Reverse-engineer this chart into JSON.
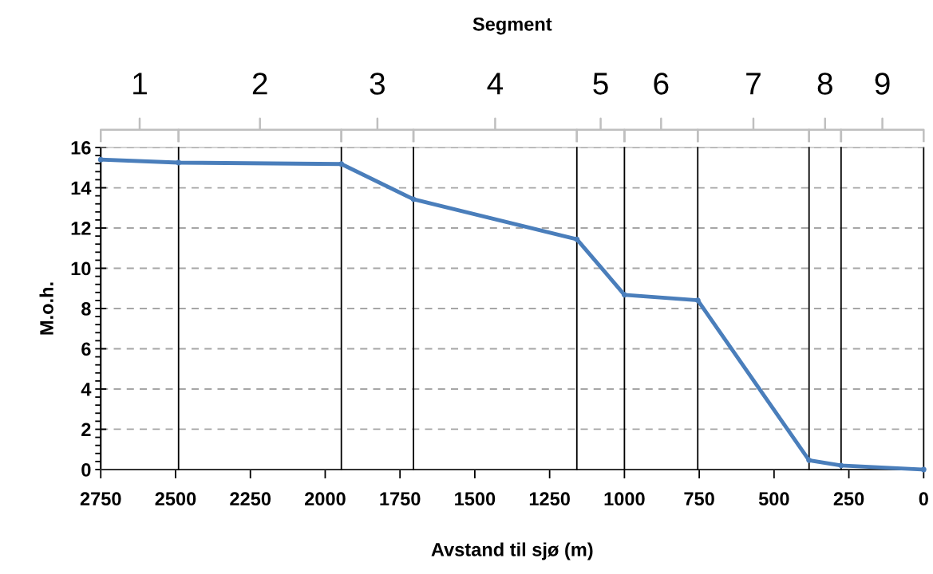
{
  "chart_data": {
    "type": "line",
    "title": "Segment",
    "xlabel": "Avstand til sjø (m)",
    "ylabel": "M.o.h.",
    "x": [
      2750,
      2490,
      1946,
      1705,
      1159,
      1000,
      755,
      383,
      276,
      0
    ],
    "series": [
      {
        "color": "#4a7ebb",
        "values": [
          15.4,
          15.25,
          15.18,
          13.43,
          11.44,
          8.68,
          8.41,
          0.46,
          0.2,
          0
        ]
      }
    ],
    "xlim": [
      2750,
      0
    ],
    "xticks": [
      2750,
      2500,
      2250,
      2000,
      1750,
      1500,
      1250,
      1000,
      750,
      500,
      250,
      0
    ],
    "ylim": [
      0,
      16
    ],
    "yticks": [
      0,
      2,
      4,
      6,
      8,
      10,
      12,
      14,
      16
    ],
    "grid": "y",
    "marker": "circle",
    "line_style": "solid",
    "ref_lines": [
      {
        "axis": "x",
        "value": 2490,
        "color": "#000000"
      },
      {
        "axis": "x",
        "value": 1946,
        "color": "#000000"
      },
      {
        "axis": "x",
        "value": 1705,
        "color": "#000000"
      },
      {
        "axis": "x",
        "value": 1159,
        "color": "#000000"
      },
      {
        "axis": "x",
        "value": 1000,
        "color": "#000000"
      },
      {
        "axis": "x",
        "value": 755,
        "color": "#000000"
      },
      {
        "axis": "x",
        "value": 383,
        "color": "#000000"
      },
      {
        "axis": "x",
        "value": 276,
        "color": "#000000"
      }
    ],
    "annotations": [
      "1",
      "2",
      "3",
      "4",
      "5",
      "6",
      "7",
      "8",
      "9"
    ]
  }
}
